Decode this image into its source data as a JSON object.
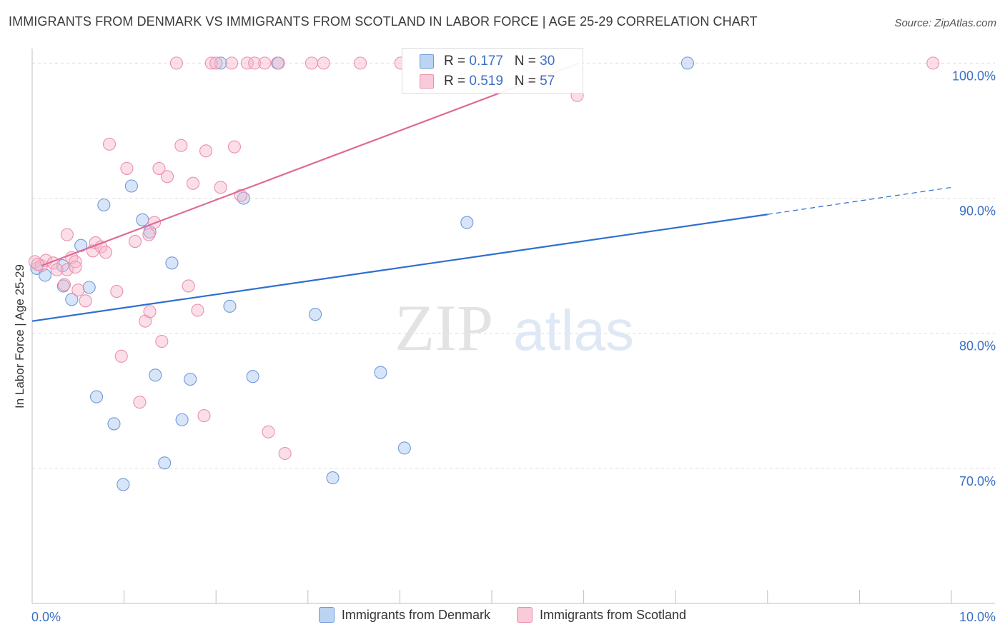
{
  "title": "IMMIGRANTS FROM DENMARK VS IMMIGRANTS FROM SCOTLAND IN LABOR FORCE | AGE 25-29 CORRELATION CHART",
  "source": "Source: ZipAtlas.com",
  "watermark": {
    "zip": "ZIP",
    "atlas": "atlas"
  },
  "stats": {
    "denmark": {
      "r_label": "R = ",
      "r": "0.177",
      "n_label": "N = ",
      "n": "30"
    },
    "scotland": {
      "r_label": "R = ",
      "r": "0.519",
      "n_label": "N = ",
      "n": "57"
    }
  },
  "chart_data": {
    "type": "scatter",
    "ylabel": "In Labor Force | Age 25-29",
    "xlim": [
      0,
      10
    ],
    "ylim": [
      60,
      101.5
    ],
    "x_tick_labels": [
      {
        "value": 0,
        "label": "0.0%"
      },
      {
        "value": 10,
        "label": "10.0%"
      }
    ],
    "y_tick_labels": [
      {
        "value": 100,
        "label": "100.0%"
      },
      {
        "value": 90,
        "label": "90.0%"
      },
      {
        "value": 80,
        "label": "80.0%"
      },
      {
        "value": 70,
        "label": "70.0%"
      }
    ],
    "grid": true,
    "legend_position": "bottom",
    "series": [
      {
        "name": "Immigrants from Denmark",
        "color": "#a9c6ef",
        "stroke": "#6f9ad8",
        "trend": {
          "x0": 0,
          "y0": 80.9,
          "x1": 8.0,
          "y1": 88.8,
          "dash_to_x": 10.0,
          "dash_to_y": 90.8,
          "color": "#2f6fcf"
        },
        "points": [
          [
            0.05,
            84.8
          ],
          [
            0.14,
            84.3
          ],
          [
            0.33,
            85.0
          ],
          [
            0.34,
            83.5
          ],
          [
            0.43,
            82.5
          ],
          [
            0.53,
            86.5
          ],
          [
            0.62,
            83.4
          ],
          [
            0.7,
            75.3
          ],
          [
            0.78,
            89.5
          ],
          [
            0.89,
            73.3
          ],
          [
            0.99,
            68.8
          ],
          [
            1.08,
            90.9
          ],
          [
            1.2,
            88.4
          ],
          [
            1.28,
            87.5
          ],
          [
            1.34,
            76.9
          ],
          [
            1.44,
            70.4
          ],
          [
            1.52,
            85.2
          ],
          [
            1.63,
            73.6
          ],
          [
            1.72,
            76.6
          ],
          [
            2.05,
            100.0
          ],
          [
            2.3,
            90.0
          ],
          [
            2.15,
            82.0
          ],
          [
            2.4,
            76.8
          ],
          [
            2.67,
            100.0
          ],
          [
            3.08,
            81.4
          ],
          [
            3.27,
            69.3
          ],
          [
            3.79,
            77.1
          ],
          [
            4.05,
            71.5
          ],
          [
            4.73,
            88.2
          ],
          [
            7.13,
            100.0
          ]
        ]
      },
      {
        "name": "Immigrants from Scotland",
        "color": "#f7b9cb",
        "stroke": "#ec8fab",
        "trend": {
          "x0": 0.1,
          "y0": 85.0,
          "x1": 5.95,
          "y1": 100.0,
          "color": "#e06a94"
        },
        "points": [
          [
            0.03,
            85.3
          ],
          [
            0.1,
            85.0
          ],
          [
            0.15,
            85.4
          ],
          [
            0.23,
            85.2
          ],
          [
            0.27,
            84.7
          ],
          [
            0.35,
            83.6
          ],
          [
            0.38,
            84.7
          ],
          [
            0.38,
            87.3
          ],
          [
            0.43,
            85.6
          ],
          [
            0.47,
            85.3
          ],
          [
            0.5,
            83.2
          ],
          [
            0.58,
            82.4
          ],
          [
            0.66,
            86.1
          ],
          [
            0.69,
            86.7
          ],
          [
            0.75,
            86.4
          ],
          [
            0.8,
            86.0
          ],
          [
            0.84,
            94.0
          ],
          [
            0.92,
            83.1
          ],
          [
            0.97,
            78.3
          ],
          [
            1.03,
            92.2
          ],
          [
            1.12,
            86.8
          ],
          [
            1.17,
            74.9
          ],
          [
            1.23,
            80.9
          ],
          [
            1.27,
            87.3
          ],
          [
            1.28,
            81.6
          ],
          [
            1.33,
            88.2
          ],
          [
            1.38,
            92.2
          ],
          [
            1.41,
            79.4
          ],
          [
            1.47,
            91.6
          ],
          [
            1.62,
            93.9
          ],
          [
            1.7,
            83.5
          ],
          [
            1.75,
            91.1
          ],
          [
            1.8,
            81.7
          ],
          [
            1.87,
            73.9
          ],
          [
            1.89,
            93.5
          ],
          [
            1.95,
            100.0
          ],
          [
            2.0,
            100.0
          ],
          [
            2.05,
            90.8
          ],
          [
            2.17,
            100.0
          ],
          [
            2.2,
            93.8
          ],
          [
            2.27,
            90.2
          ],
          [
            2.34,
            100.0
          ],
          [
            2.42,
            100.0
          ],
          [
            2.53,
            100.0
          ],
          [
            2.57,
            72.7
          ],
          [
            2.68,
            100.0
          ],
          [
            2.75,
            71.1
          ],
          [
            3.04,
            100.0
          ],
          [
            3.17,
            100.0
          ],
          [
            3.57,
            100.0
          ],
          [
            4.01,
            100.0
          ],
          [
            1.57,
            100.0
          ],
          [
            5.45,
            100.0
          ],
          [
            5.93,
            97.6
          ],
          [
            9.8,
            100.0
          ],
          [
            0.06,
            85.1
          ],
          [
            0.47,
            84.9
          ]
        ]
      }
    ]
  }
}
